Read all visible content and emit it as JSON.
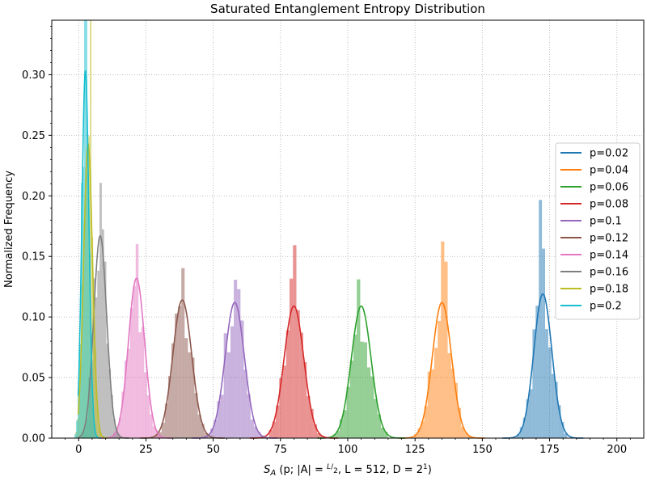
{
  "chart_data": {
    "type": "histogram",
    "title": "Saturated Entanglement Entropy Distribution",
    "xlabel": {
      "base": "S",
      "sub": "A",
      "args": "(p; |A| = ",
      "frac_num": "L",
      "frac_den": "2",
      "tail": ", L = 512, D = 2",
      "sup": "1",
      "close": ")"
    },
    "ylabel": "Normalized Frequency",
    "xlim": [
      -10,
      210
    ],
    "ylim": [
      0,
      0.345
    ],
    "xticks": [
      0,
      25,
      50,
      75,
      100,
      125,
      150,
      175,
      200
    ],
    "yticks": [
      0.0,
      0.05,
      0.1,
      0.15,
      0.2,
      0.25,
      0.3
    ],
    "ytick_labels": [
      "0.00",
      "0.05",
      "0.10",
      "0.15",
      "0.20",
      "0.25",
      "0.30"
    ],
    "grid": true,
    "legend_position": "center-right",
    "series": [
      {
        "name": "p=0.02",
        "color": "#1f77b4",
        "mean": 172.5,
        "std": 3.35,
        "peak": 0.119
      },
      {
        "name": "p=0.04",
        "color": "#ff7f0e",
        "mean": 135.0,
        "std": 3.55,
        "peak": 0.112
      },
      {
        "name": "p=0.06",
        "color": "#2ca02c",
        "mean": 105.0,
        "std": 3.65,
        "peak": 0.109
      },
      {
        "name": "p=0.08",
        "color": "#d62728",
        "mean": 80.0,
        "std": 3.65,
        "peak": 0.109
      },
      {
        "name": "p=0.1",
        "color": "#9467bd",
        "mean": 58.0,
        "std": 3.55,
        "peak": 0.112
      },
      {
        "name": "p=0.12",
        "color": "#8c564b",
        "mean": 38.5,
        "std": 3.5,
        "peak": 0.114
      },
      {
        "name": "p=0.14",
        "color": "#e377c2",
        "mean": 21.5,
        "std": 3.0,
        "peak": 0.132
      },
      {
        "name": "p=0.16",
        "color": "#7f7f7f",
        "mean": 8.0,
        "std": 2.4,
        "peak": 0.167
      },
      {
        "name": "p=0.18",
        "color": "#bcbd22",
        "mean": 3.5,
        "std": 1.65,
        "peak": 0.243
      },
      {
        "name": "p=0.2",
        "color": "#17becf",
        "mean": 2.5,
        "std": 1.3,
        "peak": 0.303
      }
    ]
  }
}
